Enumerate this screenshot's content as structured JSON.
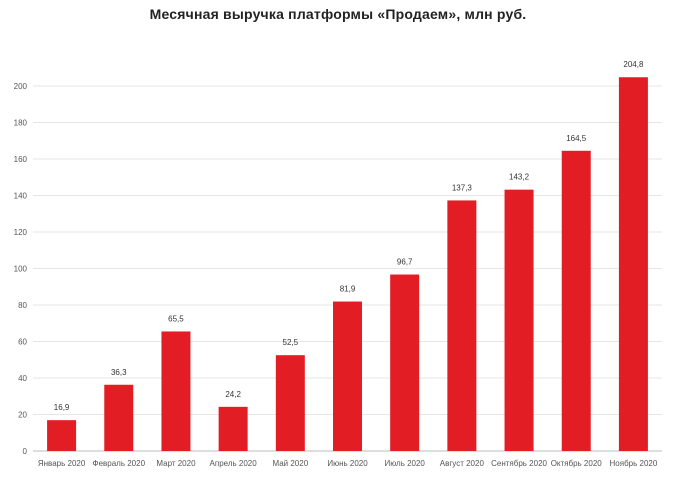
{
  "chart_data": {
    "type": "bar",
    "title": "Месячная выручка платформы «Продаем», млн руб.",
    "categories": [
      "Январь 2020",
      "Февраль 2020",
      "Март 2020",
      "Апрель 2020",
      "Май 2020",
      "Июнь 2020",
      "Июль 2020",
      "Август 2020",
      "Сентябрь 2020",
      "Октябрь 2020",
      "Ноябрь 2020"
    ],
    "values": [
      16.9,
      36.3,
      65.5,
      24.2,
      52.5,
      81.9,
      96.7,
      137.3,
      143.2,
      164.5,
      204.8
    ],
    "data_labels": [
      "16,9",
      "36,3",
      "65,5",
      "24,2",
      "52,5",
      "81,9",
      "96,7",
      "137,3",
      "143,2",
      "164,5",
      "204,8"
    ],
    "yticks": [
      "0",
      "20",
      "40",
      "60",
      "80",
      "100",
      "120",
      "140",
      "160",
      "180",
      "200"
    ],
    "ylim": [
      0,
      205
    ],
    "grid": true,
    "legend": "none",
    "bar_color": "#e21e24",
    "grid_color": "#e6e6e6"
  }
}
